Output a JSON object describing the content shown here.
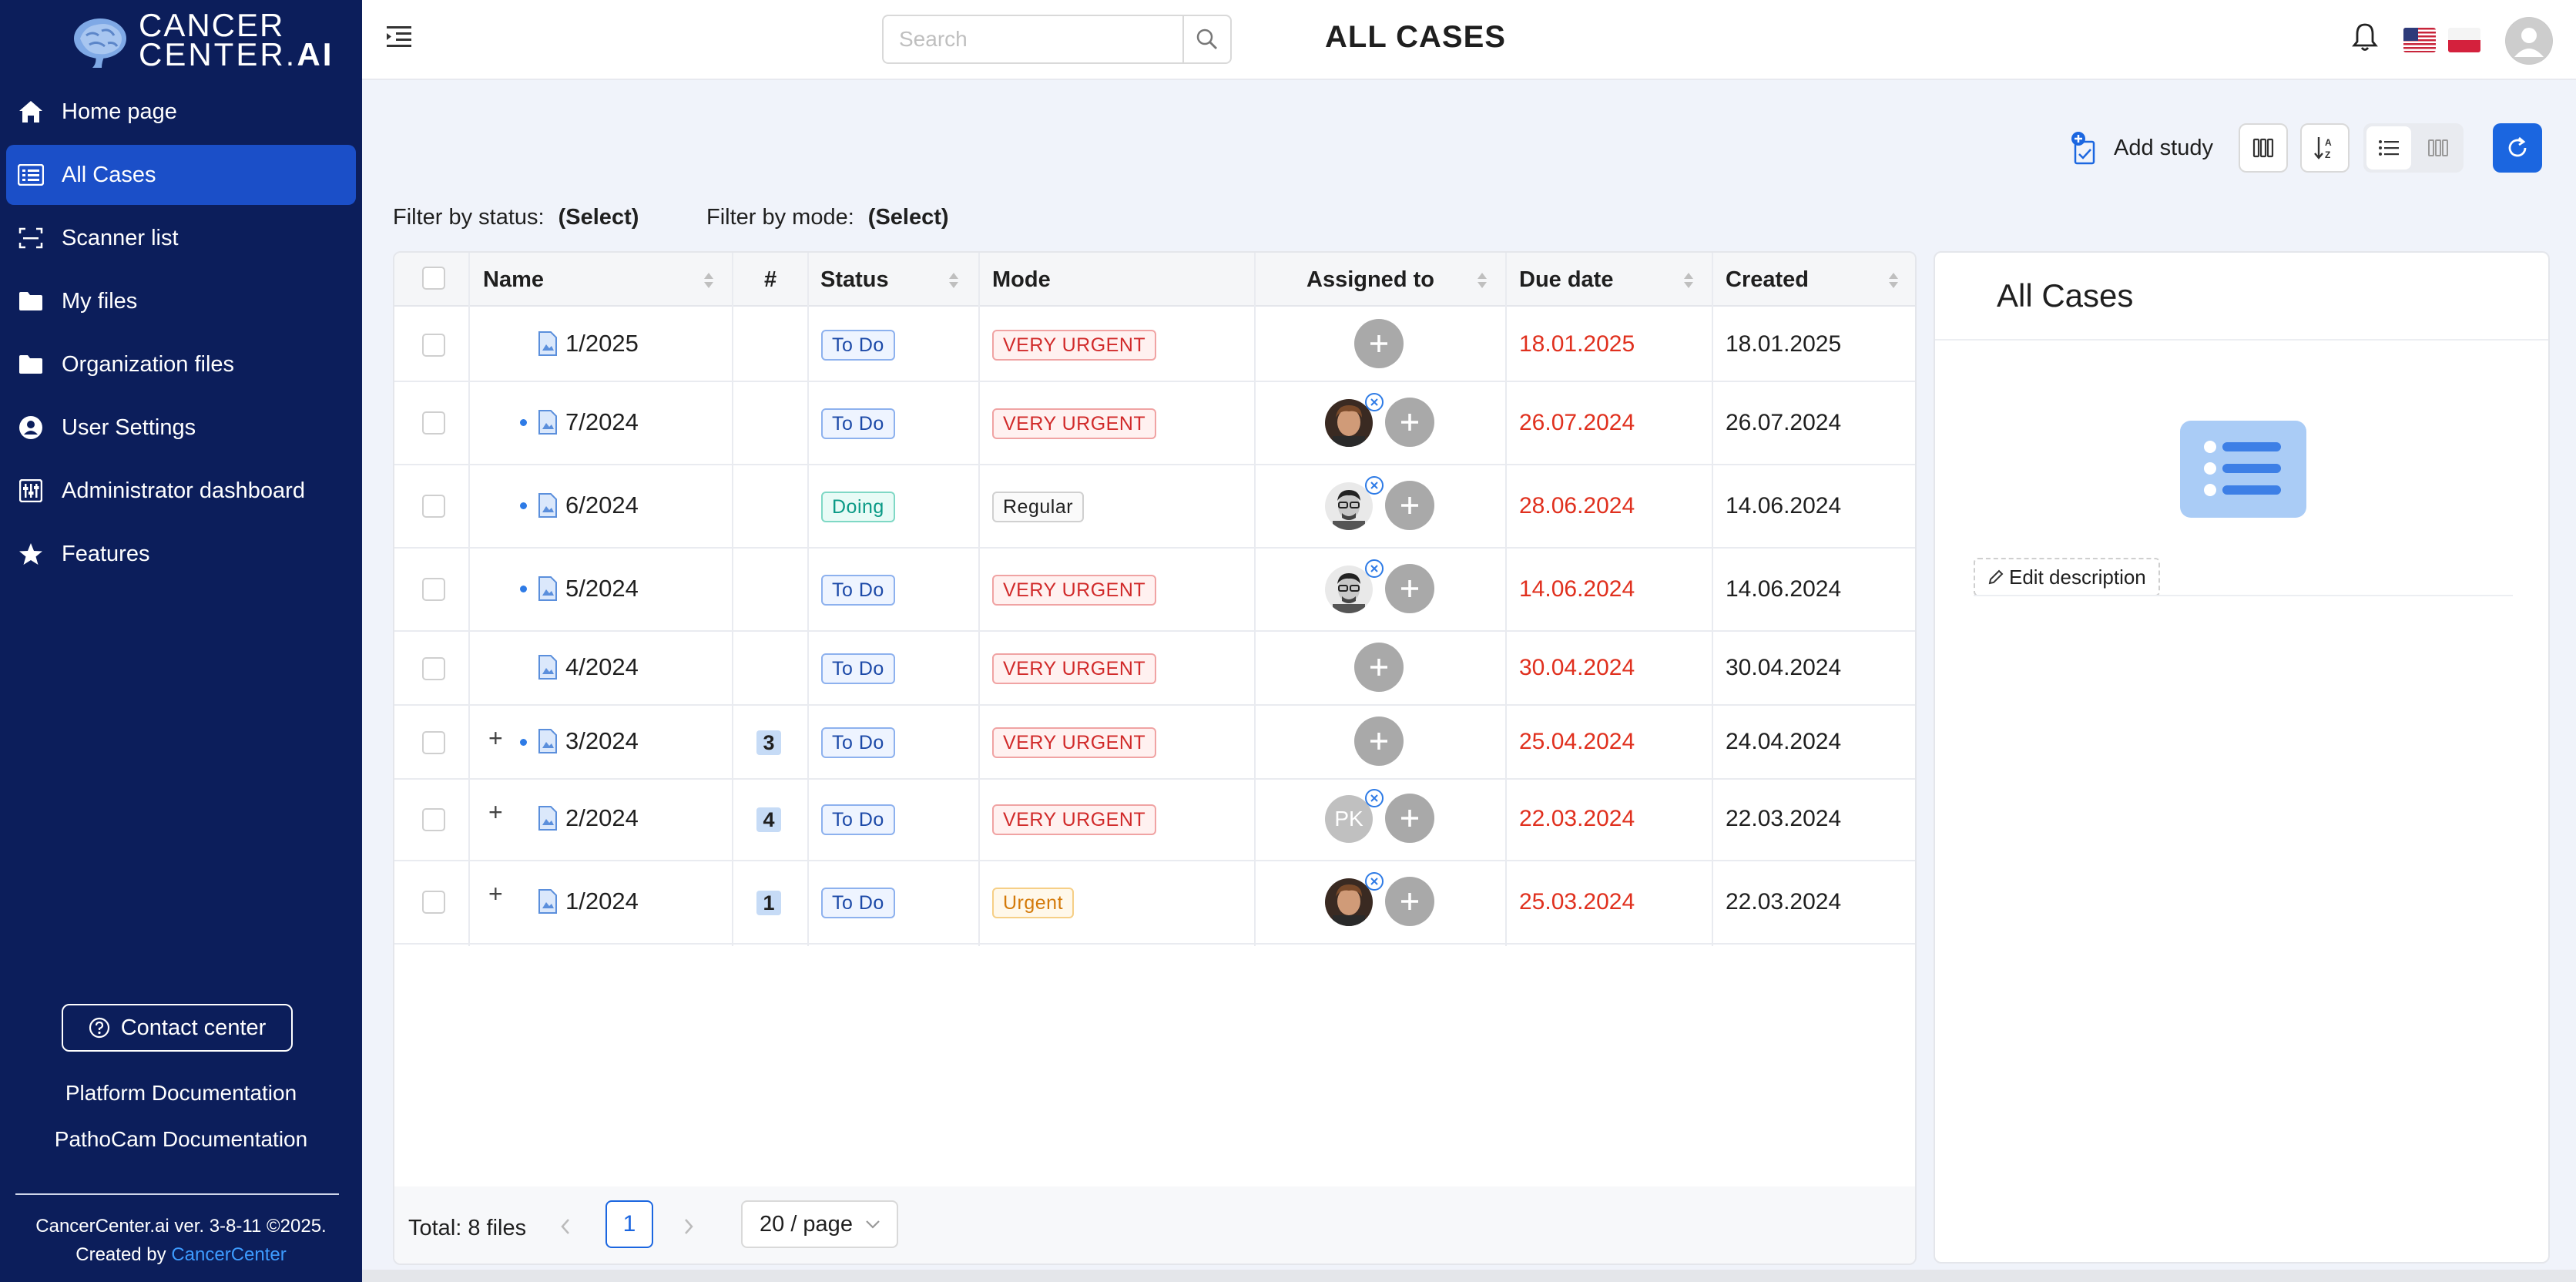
{
  "app": {
    "logo_line1": "CANCER",
    "logo_line2a": "CENTER.",
    "logo_line2b": "AI"
  },
  "sidebar": {
    "items": [
      {
        "label": "Home page",
        "icon": "home-icon"
      },
      {
        "label": "All Cases",
        "icon": "list-icon",
        "active": true
      },
      {
        "label": "Scanner list",
        "icon": "scanner-icon"
      },
      {
        "label": "My files",
        "icon": "folder-icon"
      },
      {
        "label": "Organization files",
        "icon": "folder-icon"
      },
      {
        "label": "User Settings",
        "icon": "user-icon"
      },
      {
        "label": "Administrator dashboard",
        "icon": "dashboard-icon"
      },
      {
        "label": "Features",
        "icon": "star-icon"
      }
    ],
    "contact_label": "Contact center",
    "platform_docs": "Platform Documentation",
    "pathocam_docs": "PathoCam Documentation",
    "version": "CancerCenter.ai ver. 3-8-11 ©2025.",
    "created_by": "Created by",
    "created_by_link": "CancerCenter"
  },
  "header": {
    "search_placeholder": "Search",
    "title": "ALL CASES",
    "languages": [
      "en-US",
      "pl"
    ]
  },
  "toolbar": {
    "add_study_label": "Add study"
  },
  "filters": {
    "status_label": "Filter by status:",
    "status_value": "(Select)",
    "mode_label": "Filter by mode:",
    "mode_value": "(Select)"
  },
  "table": {
    "columns": {
      "name": "Name",
      "count": "#",
      "status": "Status",
      "mode": "Mode",
      "assigned": "Assigned to",
      "due": "Due date",
      "created": "Created"
    },
    "rows": [
      {
        "name": "1/2025",
        "expand": false,
        "dot": false,
        "count": "",
        "status": "To Do",
        "mode": "VERY URGENT",
        "assignee": "",
        "due": "18.01.2025",
        "created": "18.01.2025"
      },
      {
        "name": "7/2024",
        "expand": false,
        "dot": true,
        "count": "",
        "status": "To Do",
        "mode": "VERY URGENT",
        "assignee": "photo-brown",
        "due": "26.07.2024",
        "created": "26.07.2024"
      },
      {
        "name": "6/2024",
        "expand": false,
        "dot": true,
        "count": "",
        "status": "Doing",
        "mode": "Regular",
        "assignee": "photo-glasses",
        "due": "28.06.2024",
        "created": "14.06.2024"
      },
      {
        "name": "5/2024",
        "expand": false,
        "dot": true,
        "count": "",
        "status": "To Do",
        "mode": "VERY URGENT",
        "assignee": "photo-glasses",
        "due": "14.06.2024",
        "created": "14.06.2024"
      },
      {
        "name": "4/2024",
        "expand": false,
        "dot": false,
        "count": "",
        "status": "To Do",
        "mode": "VERY URGENT",
        "assignee": "",
        "due": "30.04.2024",
        "created": "30.04.2024"
      },
      {
        "name": "3/2024",
        "expand": true,
        "dot": true,
        "count": "3",
        "status": "To Do",
        "mode": "VERY URGENT",
        "assignee": "",
        "due": "25.04.2024",
        "created": "24.04.2024"
      },
      {
        "name": "2/2024",
        "expand": true,
        "dot": false,
        "count": "4",
        "status": "To Do",
        "mode": "VERY URGENT",
        "assignee": "PK",
        "due": "22.03.2024",
        "created": "22.03.2024"
      },
      {
        "name": "1/2024",
        "expand": true,
        "dot": false,
        "count": "1",
        "status": "To Do",
        "mode": "Urgent",
        "assignee": "photo-brown",
        "due": "25.03.2024",
        "created": "22.03.2024"
      }
    ],
    "total": "Total: 8 files",
    "current_page": "1",
    "page_size": "20 / page",
    "plus_symbol": "+"
  },
  "panel": {
    "title": "All Cases",
    "edit_description": "Edit description"
  },
  "colors": {
    "sidebar_bg": "#0c1e5b",
    "active_nav": "#1b4fc8",
    "accent": "#1b66e0",
    "due_red": "#e0301e"
  }
}
